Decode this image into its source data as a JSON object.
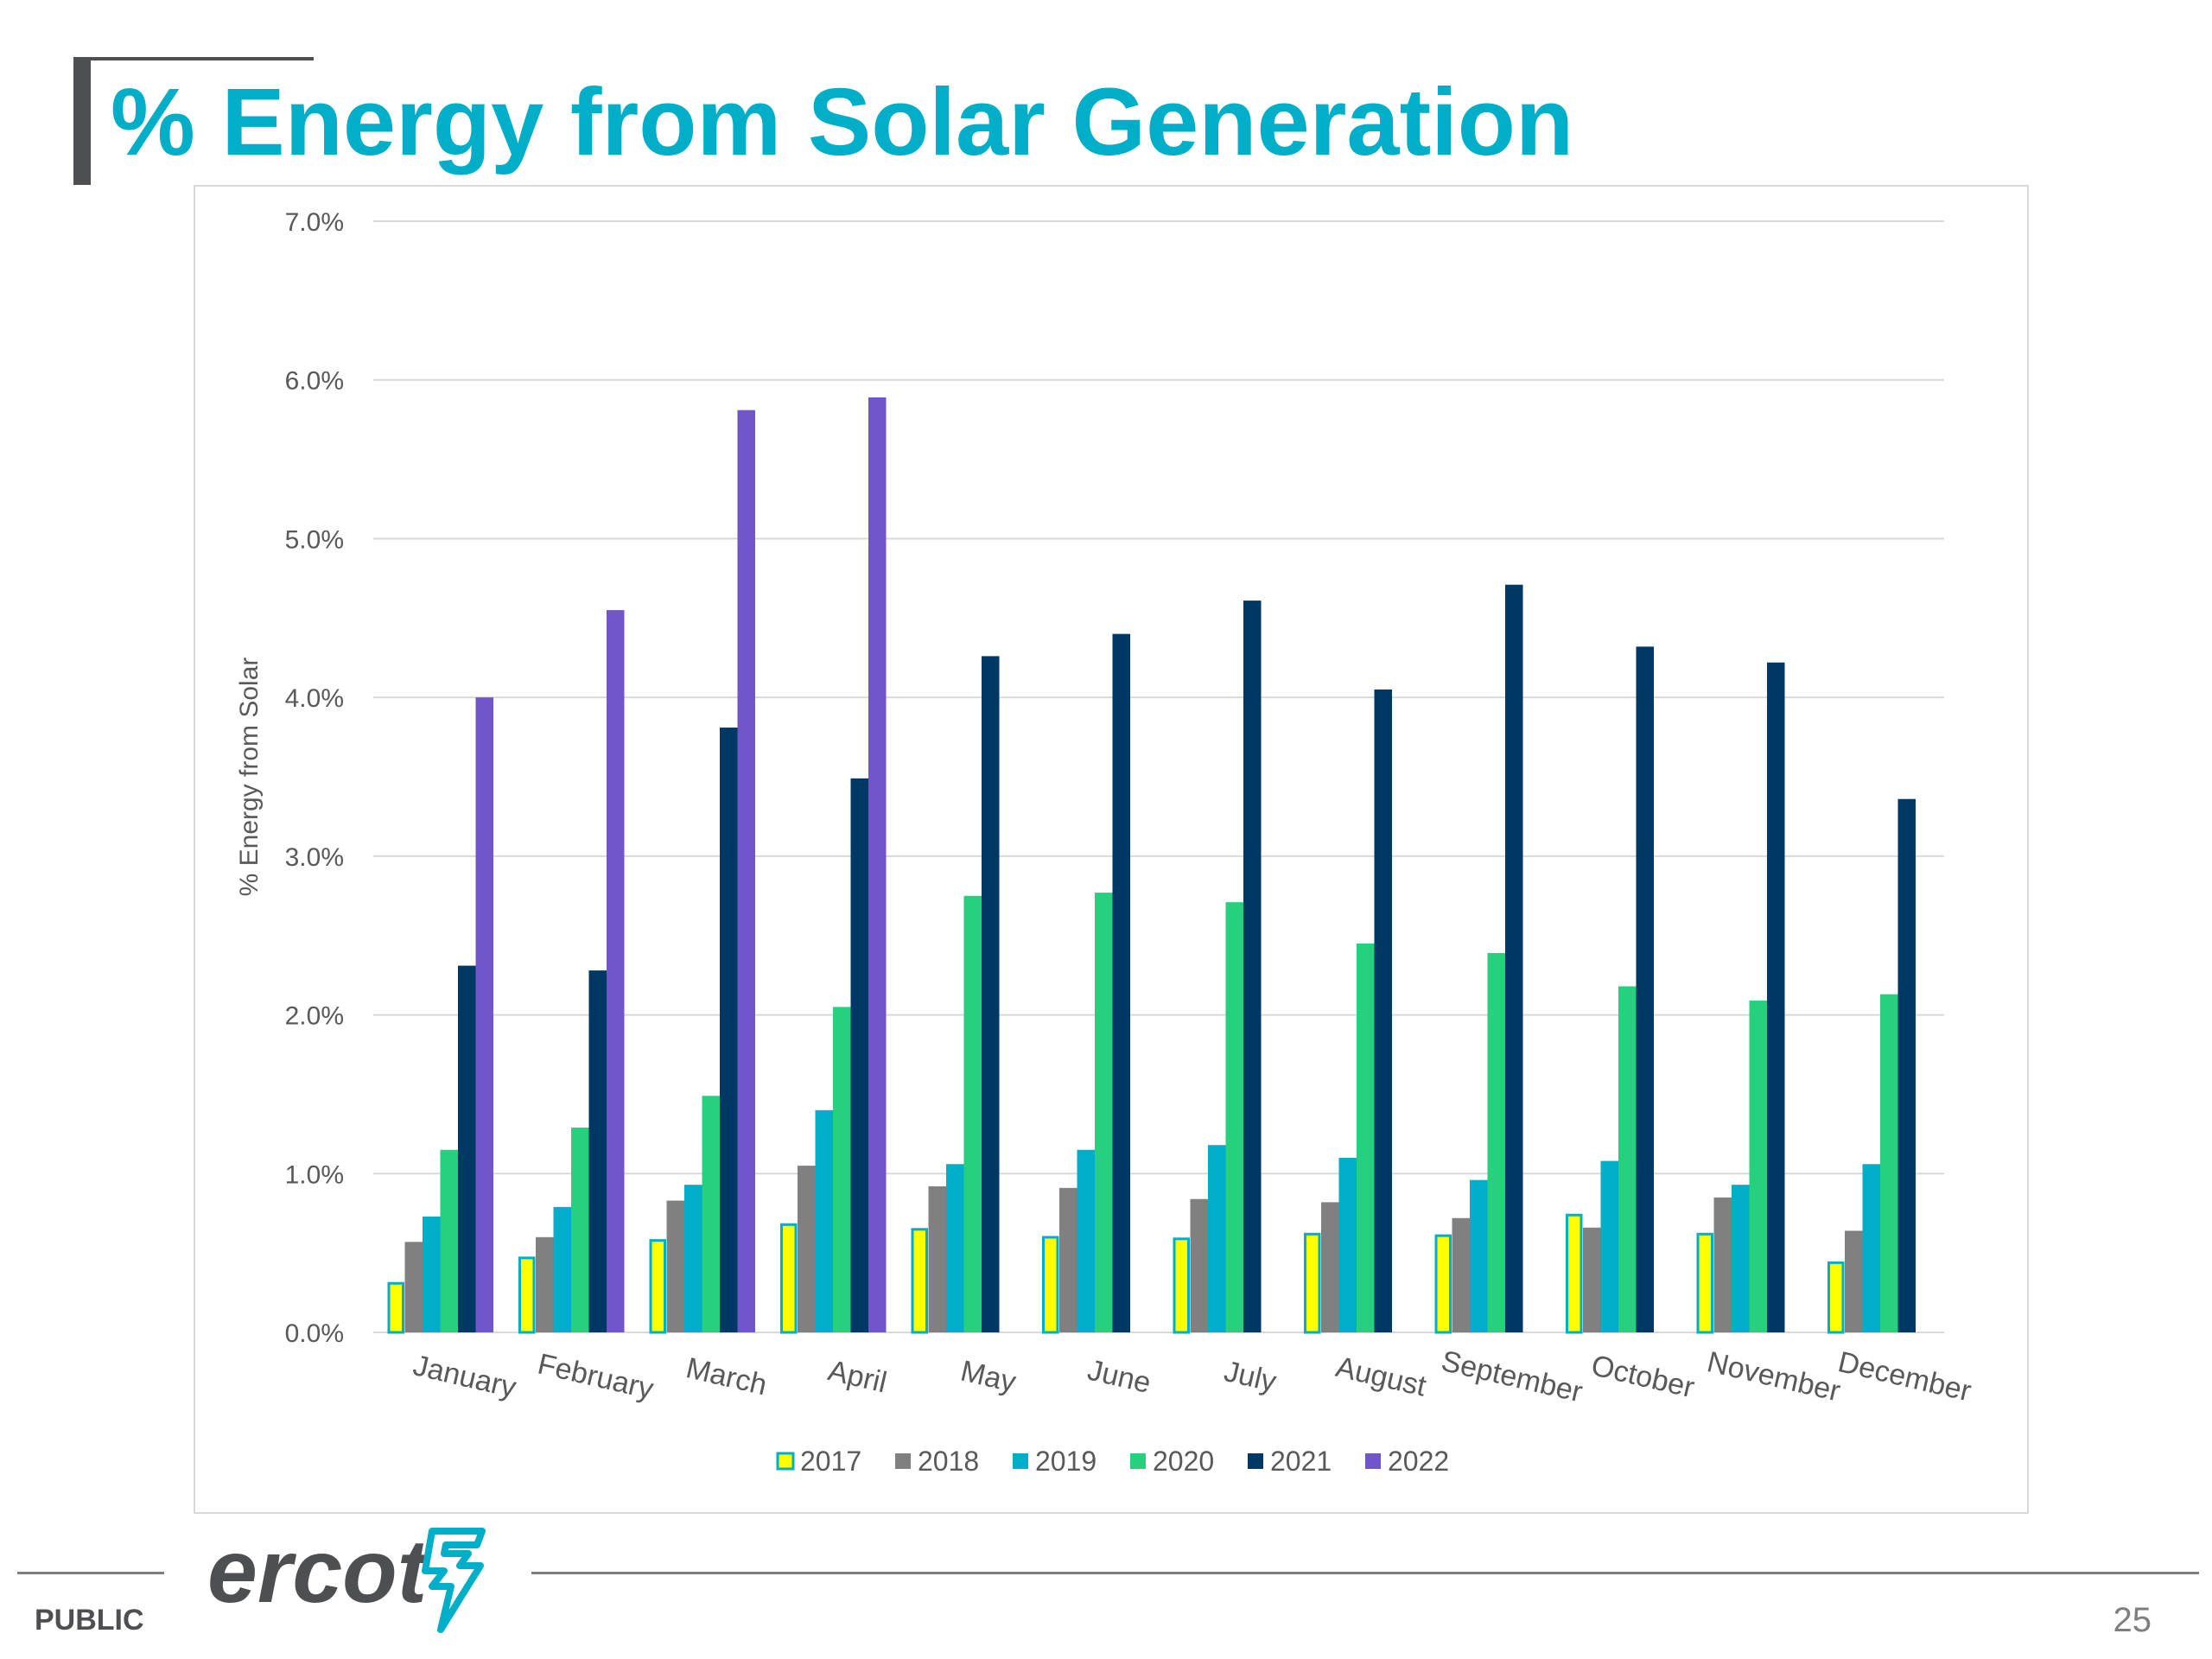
{
  "slide": {
    "title": "% Energy from Solar Generation",
    "footer_label": "PUBLIC",
    "page_number": "25",
    "logo_text": "ercot",
    "title_color": "#00aec7"
  },
  "chart_data": {
    "type": "bar",
    "title": "",
    "xlabel": "",
    "ylabel": "% Energy from Solar",
    "ylim": [
      0,
      7.0
    ],
    "yticks": [
      "0.0%",
      "1.0%",
      "2.0%",
      "3.0%",
      "4.0%",
      "5.0%",
      "6.0%",
      "7.0%"
    ],
    "grid": true,
    "legend_position": "bottom",
    "categories": [
      "January",
      "February",
      "March",
      "April",
      "May",
      "June",
      "July",
      "August",
      "September",
      "October",
      "November",
      "December"
    ],
    "series": [
      {
        "name": "2017",
        "color": "#ffff00",
        "outline": "#00aec7",
        "values": [
          0.32,
          0.48,
          0.59,
          0.69,
          0.66,
          0.61,
          0.6,
          0.63,
          0.62,
          0.75,
          0.63,
          0.45
        ]
      },
      {
        "name": "2018",
        "color": "#808080",
        "values": [
          0.57,
          0.6,
          0.83,
          1.05,
          0.92,
          0.91,
          0.84,
          0.82,
          0.72,
          0.66,
          0.85,
          0.64
        ]
      },
      {
        "name": "2019",
        "color": "#00aec7",
        "values": [
          0.73,
          0.79,
          0.93,
          1.4,
          1.06,
          1.15,
          1.18,
          1.1,
          0.96,
          1.08,
          0.93,
          1.06
        ]
      },
      {
        "name": "2020",
        "color": "#26d07c",
        "values": [
          1.15,
          1.29,
          1.49,
          2.05,
          2.75,
          2.77,
          2.71,
          2.45,
          2.39,
          2.18,
          2.09,
          2.13
        ]
      },
      {
        "name": "2021",
        "color": "#003865",
        "values": [
          2.31,
          2.28,
          3.81,
          3.49,
          4.26,
          4.4,
          4.61,
          4.05,
          4.71,
          4.32,
          4.22,
          3.36
        ]
      },
      {
        "name": "2022",
        "color": "#7156c9",
        "values": [
          4.0,
          4.55,
          5.81,
          5.89,
          null,
          null,
          null,
          null,
          null,
          null,
          null,
          null
        ]
      }
    ]
  }
}
